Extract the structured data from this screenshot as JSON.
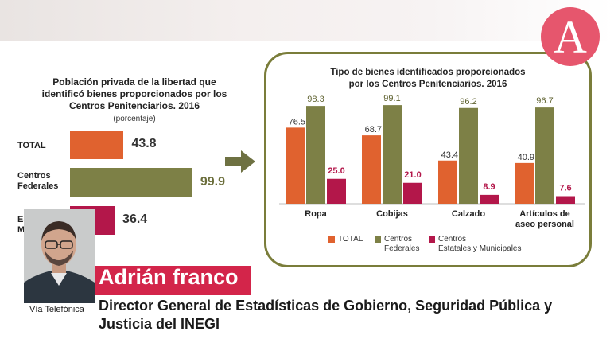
{
  "left_chart": {
    "title_lines": [
      "Población privada de la libertad que",
      "identificó bienes proporcionados por los",
      "Centros Penitenciarios. 2016"
    ],
    "subtitle": "(porcentaje)",
    "bars": [
      {
        "label_lines": [
          "TOTAL"
        ],
        "value": 43.8,
        "value_text": "43.8",
        "color": "#e0622f"
      },
      {
        "label_lines": [
          "Centros",
          "Federales"
        ],
        "value": 99.9,
        "value_text": "99.9",
        "color": "#7d8046"
      },
      {
        "label_lines": [
          "Es",
          "Mu"
        ],
        "value": 36.4,
        "value_text": "36.4",
        "color": "#b3174a"
      }
    ],
    "max": 100
  },
  "chart_data": {
    "type": "bar",
    "title": "Tipo de bienes identificados proporcionados por los Centros Penitenciarios. 2016",
    "title_lines": [
      "Tipo de bienes identificados proporcionados",
      "por los Centros Penitenciarios. 2016"
    ],
    "categories": [
      "Ropa",
      "Cobijas",
      "Calzado",
      "Artículos de aseo personal"
    ],
    "category_lines": [
      [
        "Ropa"
      ],
      [
        "Cobijas"
      ],
      [
        "Calzado"
      ],
      [
        "Artículos de",
        "aseo personal"
      ]
    ],
    "series": [
      {
        "name": "TOTAL",
        "values": [
          76.5,
          68.7,
          43.4,
          40.9
        ],
        "labels": [
          "76.5",
          "68.7",
          "43.4",
          "40.9"
        ],
        "color": "#e0622f"
      },
      {
        "name": "Centros Federales",
        "values": [
          98.3,
          99.1,
          96.2,
          96.7
        ],
        "labels": [
          "98.3",
          "99.1",
          "96.2",
          "96.7"
        ],
        "color": "#7d8046"
      },
      {
        "name": "Centros Estatales y Municipales",
        "values": [
          25.0,
          21.0,
          8.9,
          7.6
        ],
        "labels": [
          "25.0",
          "21.0",
          "8.9",
          "7.6"
        ],
        "color": "#b3174a"
      }
    ],
    "legend": [
      {
        "lines": [
          "TOTAL"
        ],
        "color": "#e0622f"
      },
      {
        "lines": [
          "Centros",
          "Federales"
        ],
        "color": "#7d8046"
      },
      {
        "lines": [
          "Centros",
          "Estatales y Municipales"
        ],
        "color": "#b3174a"
      }
    ],
    "ylim": [
      0,
      100
    ],
    "legend_position": "bottom",
    "grid": false
  },
  "overlay": {
    "name": "Adrián franco",
    "caption": "Vía Telefónica",
    "role": "Director General de Estadísticas de Gobierno, Seguridad Pública y Justicia del INEGI"
  },
  "logo": {
    "letter": "A"
  },
  "colors": {
    "accent": "#d3254a",
    "arrow": "#6e7142",
    "box_border": "#7a7d3a"
  }
}
